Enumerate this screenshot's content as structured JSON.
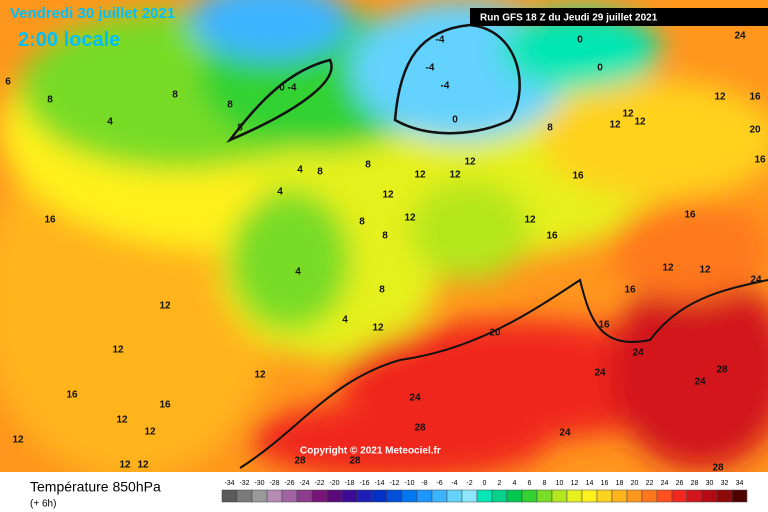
{
  "header": {
    "date": "Vendredi 30 juillet 2021",
    "time": "2:00 locale",
    "run": "Run GFS 18 Z du Jeudi 29 juillet 2021",
    "copyright": "Copyright © 2021 Meteociel.fr"
  },
  "footer": {
    "title": "Température 850hPa",
    "subtitle": "(+ 6h)"
  },
  "scale": {
    "ticks": [
      -34,
      -32,
      -30,
      -28,
      -26,
      -24,
      -22,
      -20,
      -18,
      -16,
      -14,
      -12,
      -10,
      -8,
      -6,
      -4,
      -2,
      0,
      2,
      4,
      6,
      8,
      10,
      12,
      14,
      16,
      18,
      20,
      22,
      24,
      26,
      28,
      30,
      32,
      34
    ],
    "colors": [
      "#5a5a5a",
      "#7a7a7a",
      "#9a9a9a",
      "#b48cb4",
      "#a064a0",
      "#8c3c8c",
      "#781478",
      "#5a0a78",
      "#3c0a96",
      "#1e1eb4",
      "#0032c8",
      "#0050dc",
      "#0078f0",
      "#1e96ff",
      "#3cb4ff",
      "#64d2ff",
      "#8ce6ff",
      "#00e6b4",
      "#00d28c",
      "#00c850",
      "#32d232",
      "#78dc28",
      "#b4e61e",
      "#e6f01e",
      "#fff01e",
      "#ffd21e",
      "#ffb41e",
      "#ff961e",
      "#ff781e",
      "#ff501e",
      "#f0281e",
      "#d2141e",
      "#b40a14",
      "#8c0a0a",
      "#500000"
    ]
  },
  "map_labels": [
    6,
    8,
    4,
    16,
    12,
    12,
    16,
    12,
    16,
    12,
    12,
    12,
    12,
    4,
    4,
    8,
    8,
    12,
    12,
    12,
    12,
    12,
    12,
    16,
    20,
    24,
    24,
    24,
    24,
    28,
    28,
    24,
    28,
    28,
    28,
    12,
    12,
    12,
    12,
    16,
    20,
    16,
    16,
    16,
    16,
    16,
    12,
    12,
    24,
    24,
    0,
    0,
    8,
    0,
    -4,
    -4,
    -4,
    0,
    -4,
    8,
    8,
    8,
    4,
    4,
    8,
    12,
    12,
    8,
    8
  ]
}
